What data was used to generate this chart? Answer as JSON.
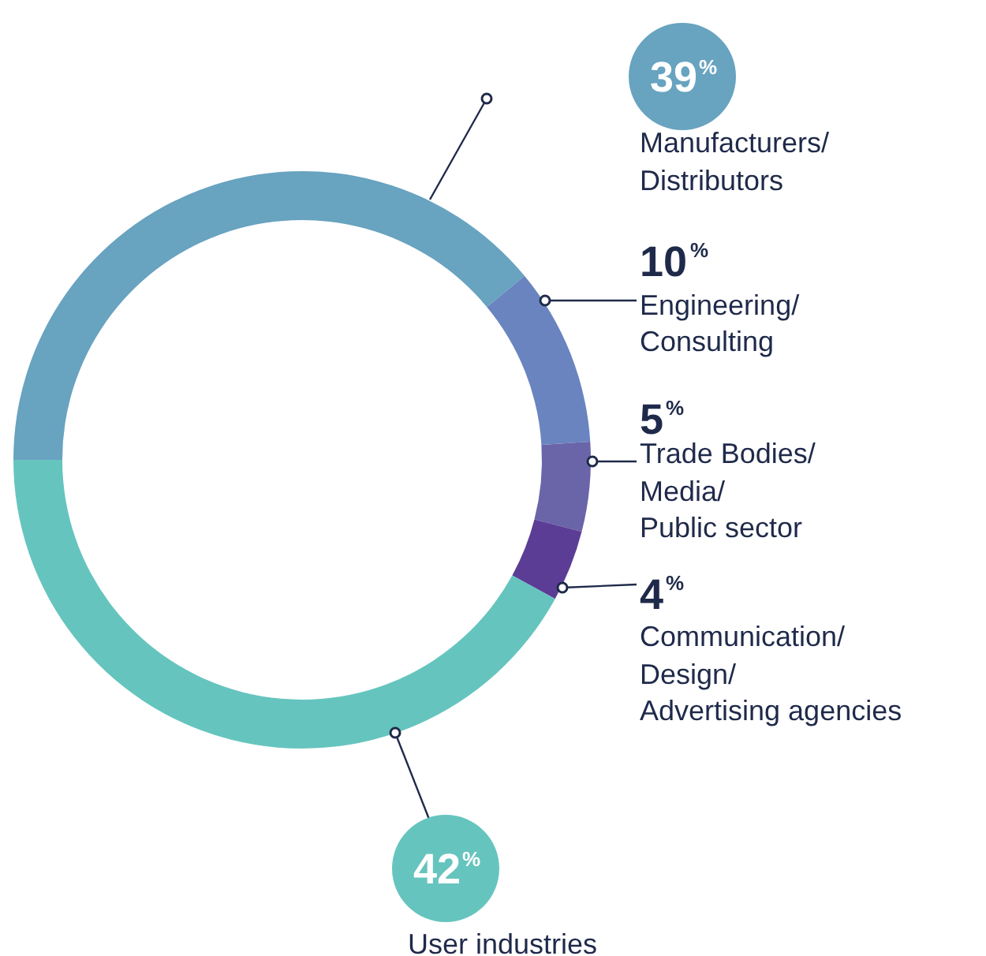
{
  "chart_data": {
    "type": "donut",
    "categories": [
      "Manufacturers/ Distributors",
      "Engineering/ Consulting",
      "Trade Bodies/ Media/ Public sector",
      "Communication/ Design/ Advertising agencies",
      "User industries"
    ],
    "values": [
      39,
      10,
      5,
      4,
      42
    ],
    "colors": [
      "#68a3c0",
      "#6a84c0",
      "#6a64a8",
      "#5c3d96",
      "#66c4be"
    ],
    "value_labels": [
      "39%",
      "10%",
      "5%",
      "4%",
      "42%"
    ]
  }
}
